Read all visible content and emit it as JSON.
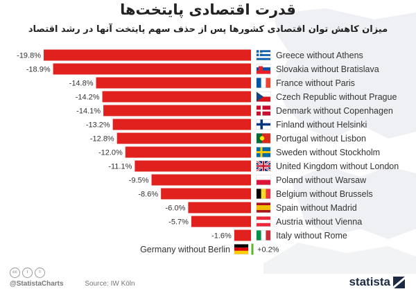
{
  "header": {
    "title": "قدرت اقتصادی پایتخت‌ها",
    "subtitle": "میزان کاهش توان اقتصادی  کشورها پس از حذف سهم  پایتخت آنها در رشد اقتصاد"
  },
  "footer": {
    "handle": "@StatistaCharts",
    "source": "Source: IW Köln",
    "brand": "statista",
    "cc_icons": [
      "cc",
      "i",
      "="
    ]
  },
  "colors": {
    "negative_bar": "#e1211e",
    "positive_bar": "#5cb531",
    "label_text": "#333333"
  },
  "chart_data": {
    "type": "bar",
    "orientation": "horizontal",
    "title": "قدرت اقتصادی پایتخت‌ها",
    "subtitle": "میزان کاهش توان اقتصادی  کشورها پس از حذف سهم  پایتخت آنها در رشد اقتصاد",
    "xlabel": "",
    "ylabel": "",
    "categories": [
      "Greece without Athens",
      "Slovakia without Bratislava",
      "France without Paris",
      "Czech Republic without Prague",
      "Denmark without Copenhagen",
      "Finland without Helsinki",
      "Portugal without Lisbon",
      "Sweden without Stockholm",
      "United Kingdom without London",
      "Poland without Warsaw",
      "Belgium without Brussels",
      "Spain without Madrid",
      "Austria without Vienna",
      "Italy without Rome",
      "Germany without Berlin"
    ],
    "values": [
      -19.8,
      -18.9,
      -14.8,
      -14.2,
      -14.1,
      -13.2,
      -12.8,
      -12.0,
      -11.1,
      -9.5,
      -8.6,
      -6.0,
      -5.7,
      -1.6,
      0.2
    ],
    "data_labels": [
      "-19.8%",
      "-18.9%",
      "-14.8%",
      "-14.2%",
      "-14.1%",
      "-13.2%",
      "-12.8%",
      "-12.0%",
      "-11.1%",
      "-9.5%",
      "-8.6%",
      "-6.0%",
      "-5.7%",
      "-1.6%",
      "+0.2%"
    ],
    "flags": [
      "greece-flag",
      "slovakia-flag",
      "france-flag",
      "czech-flag",
      "denmark-flag",
      "finland-flag",
      "portugal-flag",
      "sweden-flag",
      "uk-flag",
      "poland-flag",
      "belgium-flag",
      "spain-flag",
      "austria-flag",
      "italy-flag",
      "germany-flag"
    ],
    "grid": false,
    "legend": "none"
  }
}
